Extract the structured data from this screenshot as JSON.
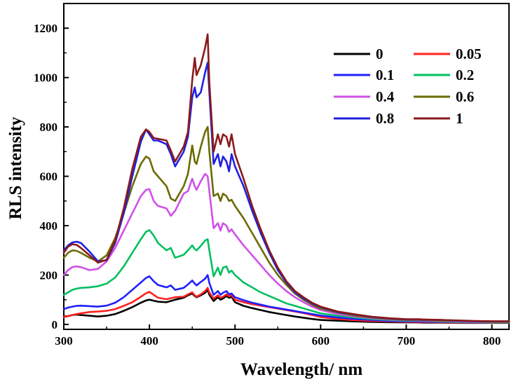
{
  "chart_data": {
    "type": "line",
    "title": "",
    "xlabel": "Wavelength/ nm",
    "ylabel": "RLS intensity",
    "xlim": [
      300,
      820
    ],
    "ylim": [
      -20,
      1300
    ],
    "xticks": [
      300,
      400,
      500,
      600,
      700,
      800
    ],
    "yticks": [
      0,
      200,
      400,
      600,
      800,
      1000,
      1200
    ],
    "grid": false,
    "legend_position": "top-right",
    "x": [
      300,
      305,
      310,
      315,
      320,
      330,
      340,
      350,
      360,
      370,
      380,
      390,
      396,
      400,
      405,
      410,
      420,
      425,
      430,
      440,
      445,
      450,
      453,
      455,
      460,
      465,
      468,
      470,
      475,
      480,
      483,
      486,
      490,
      493,
      496,
      500,
      510,
      520,
      530,
      540,
      550,
      560,
      570,
      580,
      590,
      600,
      620,
      640,
      660,
      680,
      700,
      715,
      720,
      740,
      760,
      780,
      800,
      820
    ],
    "series": [
      {
        "name": "0",
        "color": "#000000",
        "values": [
          32,
          34,
          38,
          40,
          38,
          35,
          32,
          35,
          42,
          55,
          70,
          88,
          97,
          100,
          96,
          92,
          90,
          95,
          100,
          108,
          118,
          125,
          115,
          110,
          118,
          128,
          140,
          120,
          95,
          110,
          100,
          105,
          115,
          108,
          112,
          90,
          75,
          66,
          58,
          50,
          44,
          38,
          32,
          27,
          22,
          18,
          15,
          12,
          10,
          9,
          8,
          8,
          7,
          7,
          6,
          6,
          6,
          6
        ]
      },
      {
        "name": "0.05",
        "color": "#ff2020",
        "values": [
          30,
          33,
          38,
          42,
          45,
          50,
          52,
          55,
          62,
          75,
          90,
          112,
          126,
          132,
          120,
          108,
          102,
          106,
          110,
          112,
          122,
          130,
          118,
          112,
          122,
          135,
          148,
          130,
          105,
          118,
          108,
          112,
          122,
          114,
          118,
          100,
          90,
          82,
          76,
          70,
          64,
          58,
          52,
          46,
          38,
          30,
          22,
          17,
          14,
          12,
          10,
          10,
          9,
          8,
          7,
          7,
          7,
          7
        ]
      },
      {
        "name": "0.1",
        "color": "#2020ff",
        "values": [
          62,
          68,
          72,
          75,
          76,
          74,
          72,
          76,
          88,
          110,
          140,
          170,
          188,
          195,
          175,
          160,
          150,
          158,
          140,
          148,
          162,
          178,
          165,
          158,
          172,
          185,
          200,
          168,
          120,
          135,
          120,
          128,
          135,
          122,
          125,
          110,
          98,
          88,
          80,
          72,
          66,
          60,
          54,
          48,
          42,
          36,
          28,
          22,
          18,
          14,
          12,
          12,
          11,
          10,
          9,
          8,
          8,
          8
        ]
      },
      {
        "name": "0.2",
        "color": "#00c060",
        "values": [
          120,
          130,
          140,
          145,
          148,
          150,
          155,
          165,
          190,
          235,
          290,
          345,
          375,
          382,
          360,
          330,
          300,
          310,
          270,
          282,
          300,
          320,
          305,
          300,
          318,
          340,
          345,
          300,
          195,
          230,
          200,
          230,
          235,
          210,
          218,
          200,
          170,
          150,
          130,
          115,
          100,
          85,
          75,
          65,
          55,
          45,
          35,
          28,
          22,
          18,
          15,
          15,
          14,
          12,
          10,
          9,
          8,
          8
        ]
      },
      {
        "name": "0.4",
        "color": "#d050e8",
        "values": [
          200,
          220,
          232,
          235,
          232,
          220,
          225,
          255,
          310,
          380,
          450,
          520,
          545,
          548,
          500,
          480,
          470,
          440,
          460,
          530,
          540,
          590,
          560,
          545,
          580,
          610,
          600,
          540,
          390,
          410,
          380,
          410,
          400,
          375,
          385,
          365,
          320,
          280,
          240,
          200,
          165,
          135,
          110,
          90,
          72,
          58,
          42,
          32,
          25,
          20,
          17,
          16,
          15,
          14,
          12,
          10,
          10,
          10
        ]
      },
      {
        "name": "0.6",
        "color": "#6b6b00",
        "values": [
          270,
          290,
          300,
          298,
          290,
          270,
          255,
          280,
          350,
          450,
          560,
          650,
          680,
          672,
          620,
          600,
          560,
          510,
          500,
          560,
          610,
          725,
          660,
          650,
          720,
          780,
          800,
          700,
          520,
          530,
          500,
          530,
          520,
          500,
          505,
          480,
          430,
          370,
          310,
          250,
          200,
          160,
          125,
          100,
          80,
          64,
          48,
          36,
          28,
          22,
          18,
          18,
          17,
          16,
          14,
          12,
          11,
          11
        ]
      },
      {
        "name": "0.8",
        "color": "#2020e0",
        "values": [
          300,
          320,
          332,
          335,
          330,
          295,
          255,
          260,
          330,
          450,
          600,
          740,
          790,
          770,
          745,
          745,
          730,
          690,
          640,
          700,
          760,
          920,
          960,
          920,
          940,
          1020,
          1060,
          940,
          650,
          690,
          640,
          680,
          660,
          620,
          690,
          640,
          560,
          460,
          370,
          290,
          220,
          170,
          130,
          105,
          85,
          70,
          50,
          40,
          30,
          24,
          20,
          20,
          19,
          18,
          15,
          13,
          12,
          12
        ]
      },
      {
        "name": "1",
        "color": "#8b1a1a",
        "values": [
          290,
          315,
          325,
          322,
          310,
          280,
          250,
          262,
          340,
          470,
          630,
          760,
          790,
          780,
          755,
          752,
          745,
          705,
          660,
          720,
          780,
          990,
          1080,
          1010,
          1050,
          1120,
          1175,
          980,
          700,
          770,
          730,
          770,
          760,
          720,
          770,
          690,
          590,
          480,
          385,
          300,
          230,
          175,
          135,
          110,
          88,
          72,
          52,
          41,
          31,
          25,
          21,
          21,
          20,
          18,
          16,
          14,
          13,
          13
        ]
      }
    ]
  }
}
